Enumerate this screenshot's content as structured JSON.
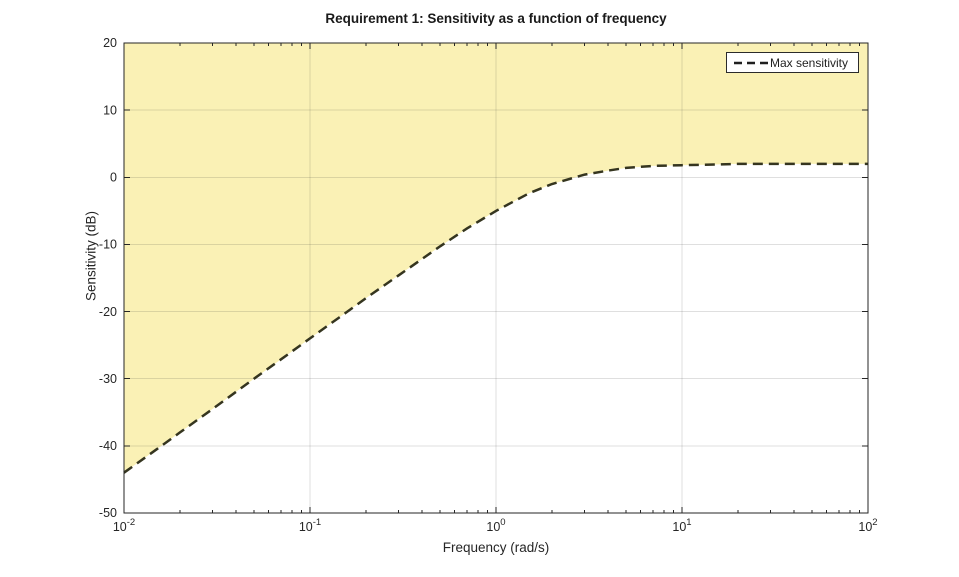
{
  "figure": {
    "title": "Requirement 1: Sensitivity as a function of frequency"
  },
  "axes": {
    "xlabel": "Frequency (rad/s)",
    "ylabel": "Sensitivity (dB)",
    "x_tick_labels": [
      {
        "mantissa": "10",
        "exponent": "-2"
      },
      {
        "mantissa": "10",
        "exponent": "-1"
      },
      {
        "mantissa": "10",
        "exponent": "0"
      },
      {
        "mantissa": "10",
        "exponent": "1"
      },
      {
        "mantissa": "10",
        "exponent": "2"
      }
    ],
    "y_tick_labels": [
      "20",
      "10",
      "0",
      "-10",
      "-20",
      "-30",
      "-40",
      "-50"
    ]
  },
  "legend": {
    "items": [
      {
        "label": "Max sensitivity",
        "line_style": "dashed"
      }
    ]
  },
  "colors": {
    "region_fill": "#FAF1B5",
    "bound_line": "#35351F",
    "legend_line": "#1F1F1F",
    "grid": "rgba(38,38,38,0.15)",
    "axis": "#262626",
    "text": "#262626",
    "background": "#FFFFFF"
  },
  "chart_data": {
    "type": "line",
    "title": "Requirement 1: Sensitivity as a function of frequency",
    "xlabel": "Frequency (rad/s)",
    "ylabel": "Sensitivity (dB)",
    "x_scale": "log",
    "xlim": [
      0.01,
      100
    ],
    "ylim": [
      -50,
      20
    ],
    "grid": true,
    "legend_position": "top-right",
    "series": [
      {
        "name": "Max sensitivity",
        "style": "dashed",
        "shaded_region": "above",
        "x": [
          0.01,
          0.015,
          0.02,
          0.03,
          0.05,
          0.07,
          0.1,
          0.15,
          0.2,
          0.3,
          0.5,
          0.7,
          1,
          1.5,
          2,
          3,
          4,
          5,
          7,
          10,
          15,
          20,
          30,
          50,
          70,
          100
        ],
        "y_db": [
          -44.0,
          -40.5,
          -38.0,
          -34.5,
          -30.0,
          -27.1,
          -24.0,
          -20.5,
          -18.0,
          -14.6,
          -10.3,
          -7.6,
          -5.0,
          -2.4,
          -1.0,
          0.4,
          1.0,
          1.4,
          1.7,
          1.8,
          1.9,
          2.0,
          2.0,
          2.0,
          2.0,
          2.0
        ]
      }
    ]
  }
}
